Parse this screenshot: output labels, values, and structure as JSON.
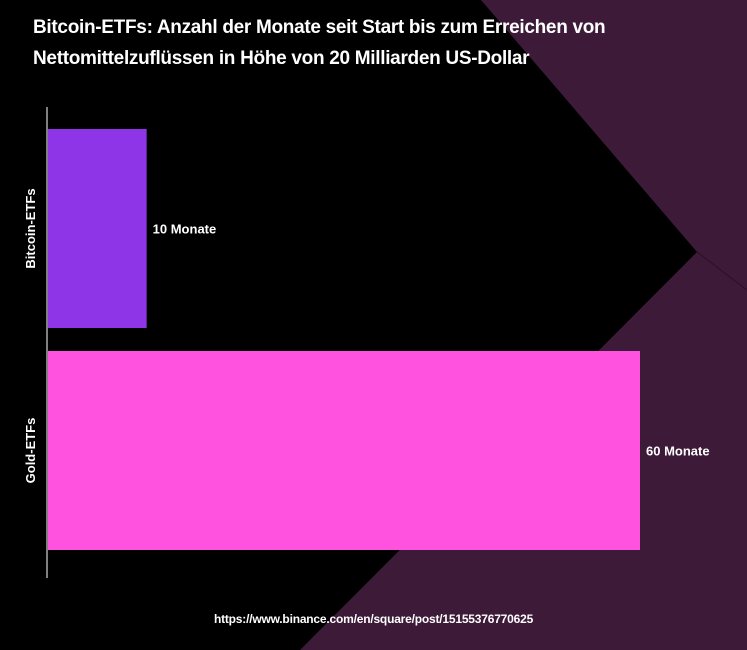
{
  "title_line1": "Bitcoin-ETFs: Anzahl der Monate seit Start bis zum Erreichen von",
  "title_line2": "Nettomittelzuflüssen in Höhe von 20 Milliarden US-Dollar",
  "source_url": "https://www.binance.com/en/square/post/15155376770625",
  "colors": {
    "background": "#000000",
    "decoration": "#3d1a38",
    "text": "#ffffff"
  },
  "chart_data": {
    "type": "bar",
    "orientation": "horizontal",
    "categories": [
      "Bitcoin-ETFs",
      "Gold-ETFs"
    ],
    "values": [
      10,
      60
    ],
    "data_labels": [
      "10 Monate",
      "60 Monate"
    ],
    "colors": [
      "#8e35e8",
      "#ff52df"
    ],
    "xlim": [
      0,
      60
    ],
    "grid": false,
    "legend": "none"
  }
}
